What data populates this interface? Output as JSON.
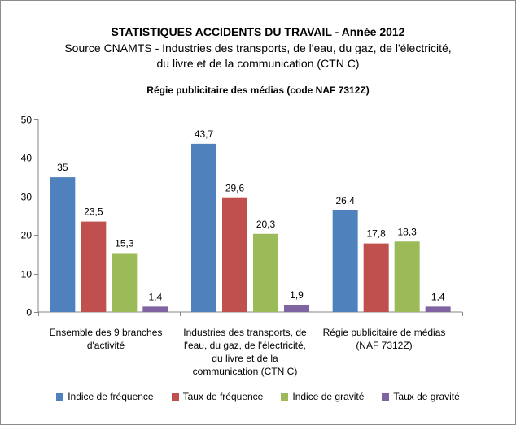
{
  "chart_data": {
    "type": "bar",
    "title": "STATISTIQUES ACCIDENTS DU TRAVAIL - Année 2012",
    "subtitle_lines": [
      "Source CNAMTS - Industries des transports, de l'eau, du gaz, de l'électricité,",
      "du livre et de la communication (CTN C)",
      "Régie publicitaire des médias (code NAF 7312Z)"
    ],
    "categories": [
      "Ensemble des 9 branches\nd'activité",
      "Industries des transports, de\nl'eau, du gaz, de l'électricité,\ndu livre et de la\ncommunication (CTN C)",
      "Régie publicitaire de médias\n(NAF 7312Z)"
    ],
    "series": [
      {
        "name": "Indice de fréquence",
        "values": [
          35,
          43.7,
          26.4
        ],
        "labels": [
          "35",
          "43,7",
          "26,4"
        ],
        "color": "#4f81bd"
      },
      {
        "name": "Taux de fréquence",
        "values": [
          23.5,
          29.6,
          17.8
        ],
        "labels": [
          "23,5",
          "29,6",
          "17,8"
        ],
        "color": "#c0504d"
      },
      {
        "name": "Indice de gravité",
        "values": [
          15.3,
          20.3,
          18.3
        ],
        "labels": [
          "15,3",
          "20,3",
          "18,3"
        ],
        "color": "#9bbb59"
      },
      {
        "name": "Taux de gravité",
        "values": [
          1.4,
          1.9,
          1.4
        ],
        "labels": [
          "1,4",
          "1,9",
          "1,4"
        ],
        "color": "#8064a2"
      }
    ],
    "ylim": [
      0,
      50
    ],
    "yticks": [
      0,
      10,
      20,
      30,
      40,
      50
    ],
    "grid": false,
    "legend_position": "bottom"
  }
}
